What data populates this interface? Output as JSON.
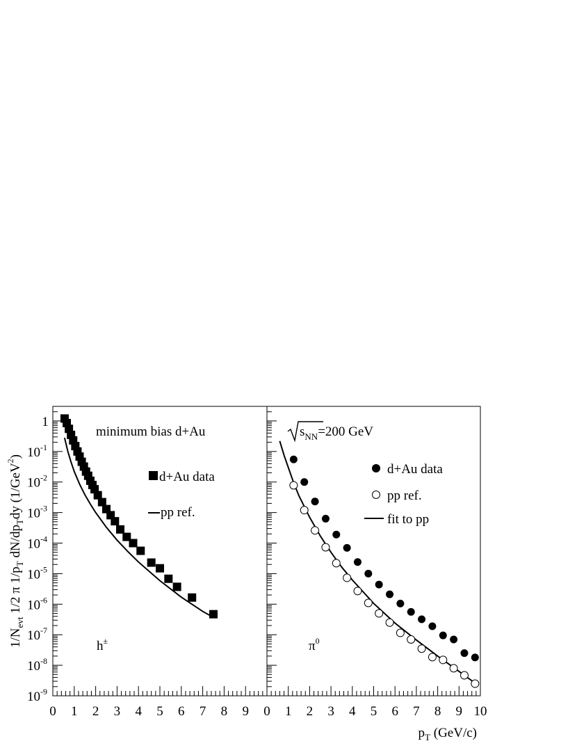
{
  "chart_data": [
    {
      "type": "scatter",
      "panel": "left",
      "xlim": [
        0,
        10
      ],
      "ylim": [
        1e-09,
        3
      ],
      "yscale": "log",
      "x_ticks": [
        "0",
        "1",
        "2",
        "3",
        "4",
        "5",
        "6",
        "7",
        "8",
        "9"
      ],
      "y_ticks": [
        {
          "base": "1",
          "exp": ""
        },
        {
          "base": "10",
          "exp": "-1"
        },
        {
          "base": "10",
          "exp": "-2"
        },
        {
          "base": "10",
          "exp": "-3"
        },
        {
          "base": "10",
          "exp": "-4"
        },
        {
          "base": "10",
          "exp": "-5"
        },
        {
          "base": "10",
          "exp": "-6"
        },
        {
          "base": "10",
          "exp": "-7"
        },
        {
          "base": "10",
          "exp": "-8"
        },
        {
          "base": "10",
          "exp": "-9"
        }
      ],
      "annotation": "minimum bias d+Au",
      "particle_label": {
        "base": "h",
        "sup": "±"
      },
      "legend": [
        {
          "marker": "filled-square",
          "label": "d+Au data"
        },
        {
          "marker": "line",
          "label": "pp ref."
        }
      ],
      "series": [
        {
          "name": "d+Au data",
          "marker": "filled-square",
          "x": [
            0.55,
            0.65,
            0.75,
            0.85,
            0.95,
            1.05,
            1.15,
            1.25,
            1.35,
            1.45,
            1.55,
            1.65,
            1.75,
            1.85,
            1.95,
            2.1,
            2.3,
            2.5,
            2.7,
            2.9,
            3.15,
            3.45,
            3.75,
            4.1,
            4.6,
            5.0,
            5.4,
            5.8,
            6.5,
            7.5
          ],
          "y": [
            1.2,
            0.85,
            0.55,
            0.35,
            0.23,
            0.15,
            0.1,
            0.068,
            0.046,
            0.032,
            0.022,
            0.016,
            0.011,
            0.008,
            0.0058,
            0.0037,
            0.0022,
            0.0013,
            0.00082,
            0.00052,
            0.00028,
            0.00016,
            0.0001,
            5.6e-05,
            2.3e-05,
            1.5e-05,
            6.8e-06,
            3.7e-06,
            1.65e-06,
            4.7e-07
          ]
        },
        {
          "name": "pp ref.",
          "type": "line",
          "x": [
            0.55,
            0.7,
            0.85,
            1.0,
            1.25,
            1.5,
            1.75,
            2.0,
            2.5,
            3.0,
            3.5,
            4.0,
            5.0,
            6.0,
            7.0,
            7.5
          ],
          "y": [
            0.28,
            0.1,
            0.045,
            0.022,
            0.0085,
            0.0038,
            0.0019,
            0.001,
            0.00033,
            0.000125,
            5.3e-05,
            2.4e-05,
            5.9e-06,
            1.7e-06,
            5.8e-07,
            3.7e-07
          ]
        }
      ]
    },
    {
      "type": "scatter",
      "panel": "right",
      "xlim": [
        0,
        10
      ],
      "ylim": [
        1e-09,
        3
      ],
      "yscale": "log",
      "x_ticks": [
        "0",
        "1",
        "2",
        "3",
        "4",
        "5",
        "6",
        "7",
        "8",
        "9",
        "10"
      ],
      "annotation": {
        "sqrt": "s",
        "sub": "NN",
        "rest": "=200 GeV"
      },
      "particle_label": {
        "base": "π",
        "sup": "0"
      },
      "legend": [
        {
          "marker": "filled-circle",
          "label": "d+Au data"
        },
        {
          "marker": "open-circle",
          "label": "pp ref."
        },
        {
          "marker": "line",
          "label": "fit to pp"
        }
      ],
      "series": [
        {
          "name": "d+Au data",
          "marker": "filled-circle",
          "x": [
            1.25,
            1.75,
            2.25,
            2.75,
            3.25,
            3.75,
            4.25,
            4.75,
            5.25,
            5.75,
            6.25,
            6.75,
            7.25,
            7.75,
            8.25,
            8.75,
            9.25,
            9.75
          ],
          "y": [
            0.055,
            0.01,
            0.0023,
            0.00063,
            0.00019,
            7e-05,
            2.4e-05,
            1e-05,
            4.4e-06,
            2.1e-06,
            1.05e-06,
            5.6e-07,
            3.2e-07,
            1.9e-07,
            9.5e-08,
            7e-08,
            2.5e-08,
            1.8e-08
          ]
        },
        {
          "name": "pp ref.",
          "marker": "open-circle",
          "x": [
            1.25,
            1.75,
            2.25,
            2.75,
            3.25,
            3.75,
            4.25,
            4.75,
            5.25,
            5.75,
            6.25,
            6.75,
            7.25,
            7.75,
            8.25,
            8.75,
            9.25,
            9.75
          ],
          "y": [
            0.0078,
            0.0012,
            0.00026,
            7.3e-05,
            2.2e-05,
            7.3e-06,
            2.7e-06,
            1.1e-06,
            5e-07,
            2.5e-07,
            1.15e-07,
            7e-08,
            3.5e-08,
            1.85e-08,
            1.5e-08,
            8e-09,
            4.7e-09,
            2.5e-09
          ]
        },
        {
          "name": "fit to pp",
          "type": "line",
          "x": [
            0.6,
            0.8,
            1.0,
            1.25,
            1.5,
            2.0,
            2.5,
            3.0,
            3.5,
            4.0,
            5.0,
            6.0,
            7.0,
            8.0,
            9.0,
            9.9
          ],
          "y": [
            0.22,
            0.075,
            0.03,
            0.0095,
            0.0035,
            0.0007,
            0.00017,
            5e-05,
            1.65e-05,
            6.2e-06,
            1.06e-06,
            2.4e-07,
            6.7e-08,
            2e-08,
            6.3e-09,
            2.2e-09
          ]
        }
      ]
    }
  ],
  "y_axis_title": "1/N_evt 1/2 π 1/p_T dN/dp_T dy (1/GeV^2)",
  "x_axis_title": "p_T (GeV/c)"
}
